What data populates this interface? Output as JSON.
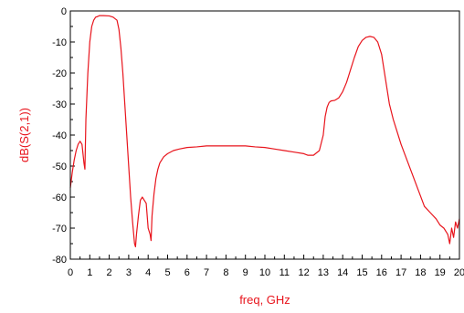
{
  "chart_data": {
    "type": "line",
    "title": "",
    "xlabel": "freq, GHz",
    "ylabel": "dB(S(2,1))",
    "xlim": [
      0,
      20
    ],
    "ylim": [
      -80,
      0
    ],
    "x_ticks": [
      "0",
      "1",
      "2",
      "3",
      "4",
      "5",
      "6",
      "7",
      "8",
      "9",
      "10",
      "11",
      "12",
      "13",
      "14",
      "15",
      "16",
      "17",
      "18",
      "19",
      "20"
    ],
    "y_ticks": [
      "0",
      "-10",
      "-20",
      "-30",
      "-40",
      "-50",
      "-60",
      "-70",
      "-80"
    ],
    "grid": false,
    "legend": "none",
    "colors": {
      "series": "#e8141c",
      "axis_title": "#e8141c",
      "frame": "#000000"
    },
    "series": [
      {
        "x": [
          0.0,
          0.1,
          0.2,
          0.3,
          0.4,
          0.5,
          0.6,
          0.7,
          0.75,
          0.8,
          0.9,
          1.0,
          1.1,
          1.2,
          1.3,
          1.4,
          1.5,
          1.7,
          2.0,
          2.2,
          2.4,
          2.5,
          2.6,
          2.7,
          2.8,
          2.9,
          3.0,
          3.1,
          3.2,
          3.3,
          3.35,
          3.4,
          3.5,
          3.6,
          3.7,
          3.8,
          3.9,
          4.0,
          4.1,
          4.15,
          4.2,
          4.3,
          4.4,
          4.5,
          4.6,
          4.8,
          5.0,
          5.3,
          5.6,
          6.0,
          6.5,
          7.0,
          7.5,
          8.0,
          8.5,
          9.0,
          9.5,
          10.0,
          10.5,
          11.0,
          11.5,
          12.0,
          12.2,
          12.5,
          12.8,
          13.0,
          13.1,
          13.2,
          13.3,
          13.4,
          13.6,
          13.8,
          14.0,
          14.2,
          14.4,
          14.6,
          14.8,
          15.0,
          15.2,
          15.4,
          15.6,
          15.8,
          16.0,
          16.2,
          16.4,
          16.6,
          16.8,
          17.0,
          17.3,
          17.6,
          17.9,
          18.2,
          18.5,
          18.8,
          19.0,
          19.2,
          19.4,
          19.5,
          19.6,
          19.7,
          19.8,
          19.9,
          20.0
        ],
        "y": [
          -57,
          -52,
          -48,
          -45,
          -43,
          -42,
          -43,
          -49,
          -51,
          -35,
          -20,
          -10,
          -5,
          -3,
          -2,
          -1.8,
          -1.5,
          -1.5,
          -1.6,
          -2,
          -3,
          -6,
          -12,
          -20,
          -30,
          -40,
          -50,
          -60,
          -68,
          -75,
          -76,
          -72,
          -66,
          -61,
          -60,
          -61,
          -62,
          -70,
          -72,
          -74,
          -66,
          -59,
          -54,
          -51,
          -49,
          -47,
          -46,
          -45,
          -44.5,
          -44,
          -43.8,
          -43.5,
          -43.5,
          -43.5,
          -43.5,
          -43.5,
          -43.8,
          -44,
          -44.5,
          -45,
          -45.5,
          -46,
          -46.5,
          -46.5,
          -45,
          -40,
          -34,
          -31,
          -29.5,
          -29,
          -28.8,
          -28,
          -26,
          -23,
          -19,
          -15,
          -11.5,
          -9.5,
          -8.5,
          -8.2,
          -8.5,
          -10,
          -14,
          -22,
          -30,
          -35,
          -39,
          -43,
          -48,
          -53,
          -58,
          -63,
          -65,
          -67,
          -69,
          -70,
          -72,
          -75,
          -70,
          -73,
          -68,
          -70,
          -67
        ]
      }
    ]
  }
}
